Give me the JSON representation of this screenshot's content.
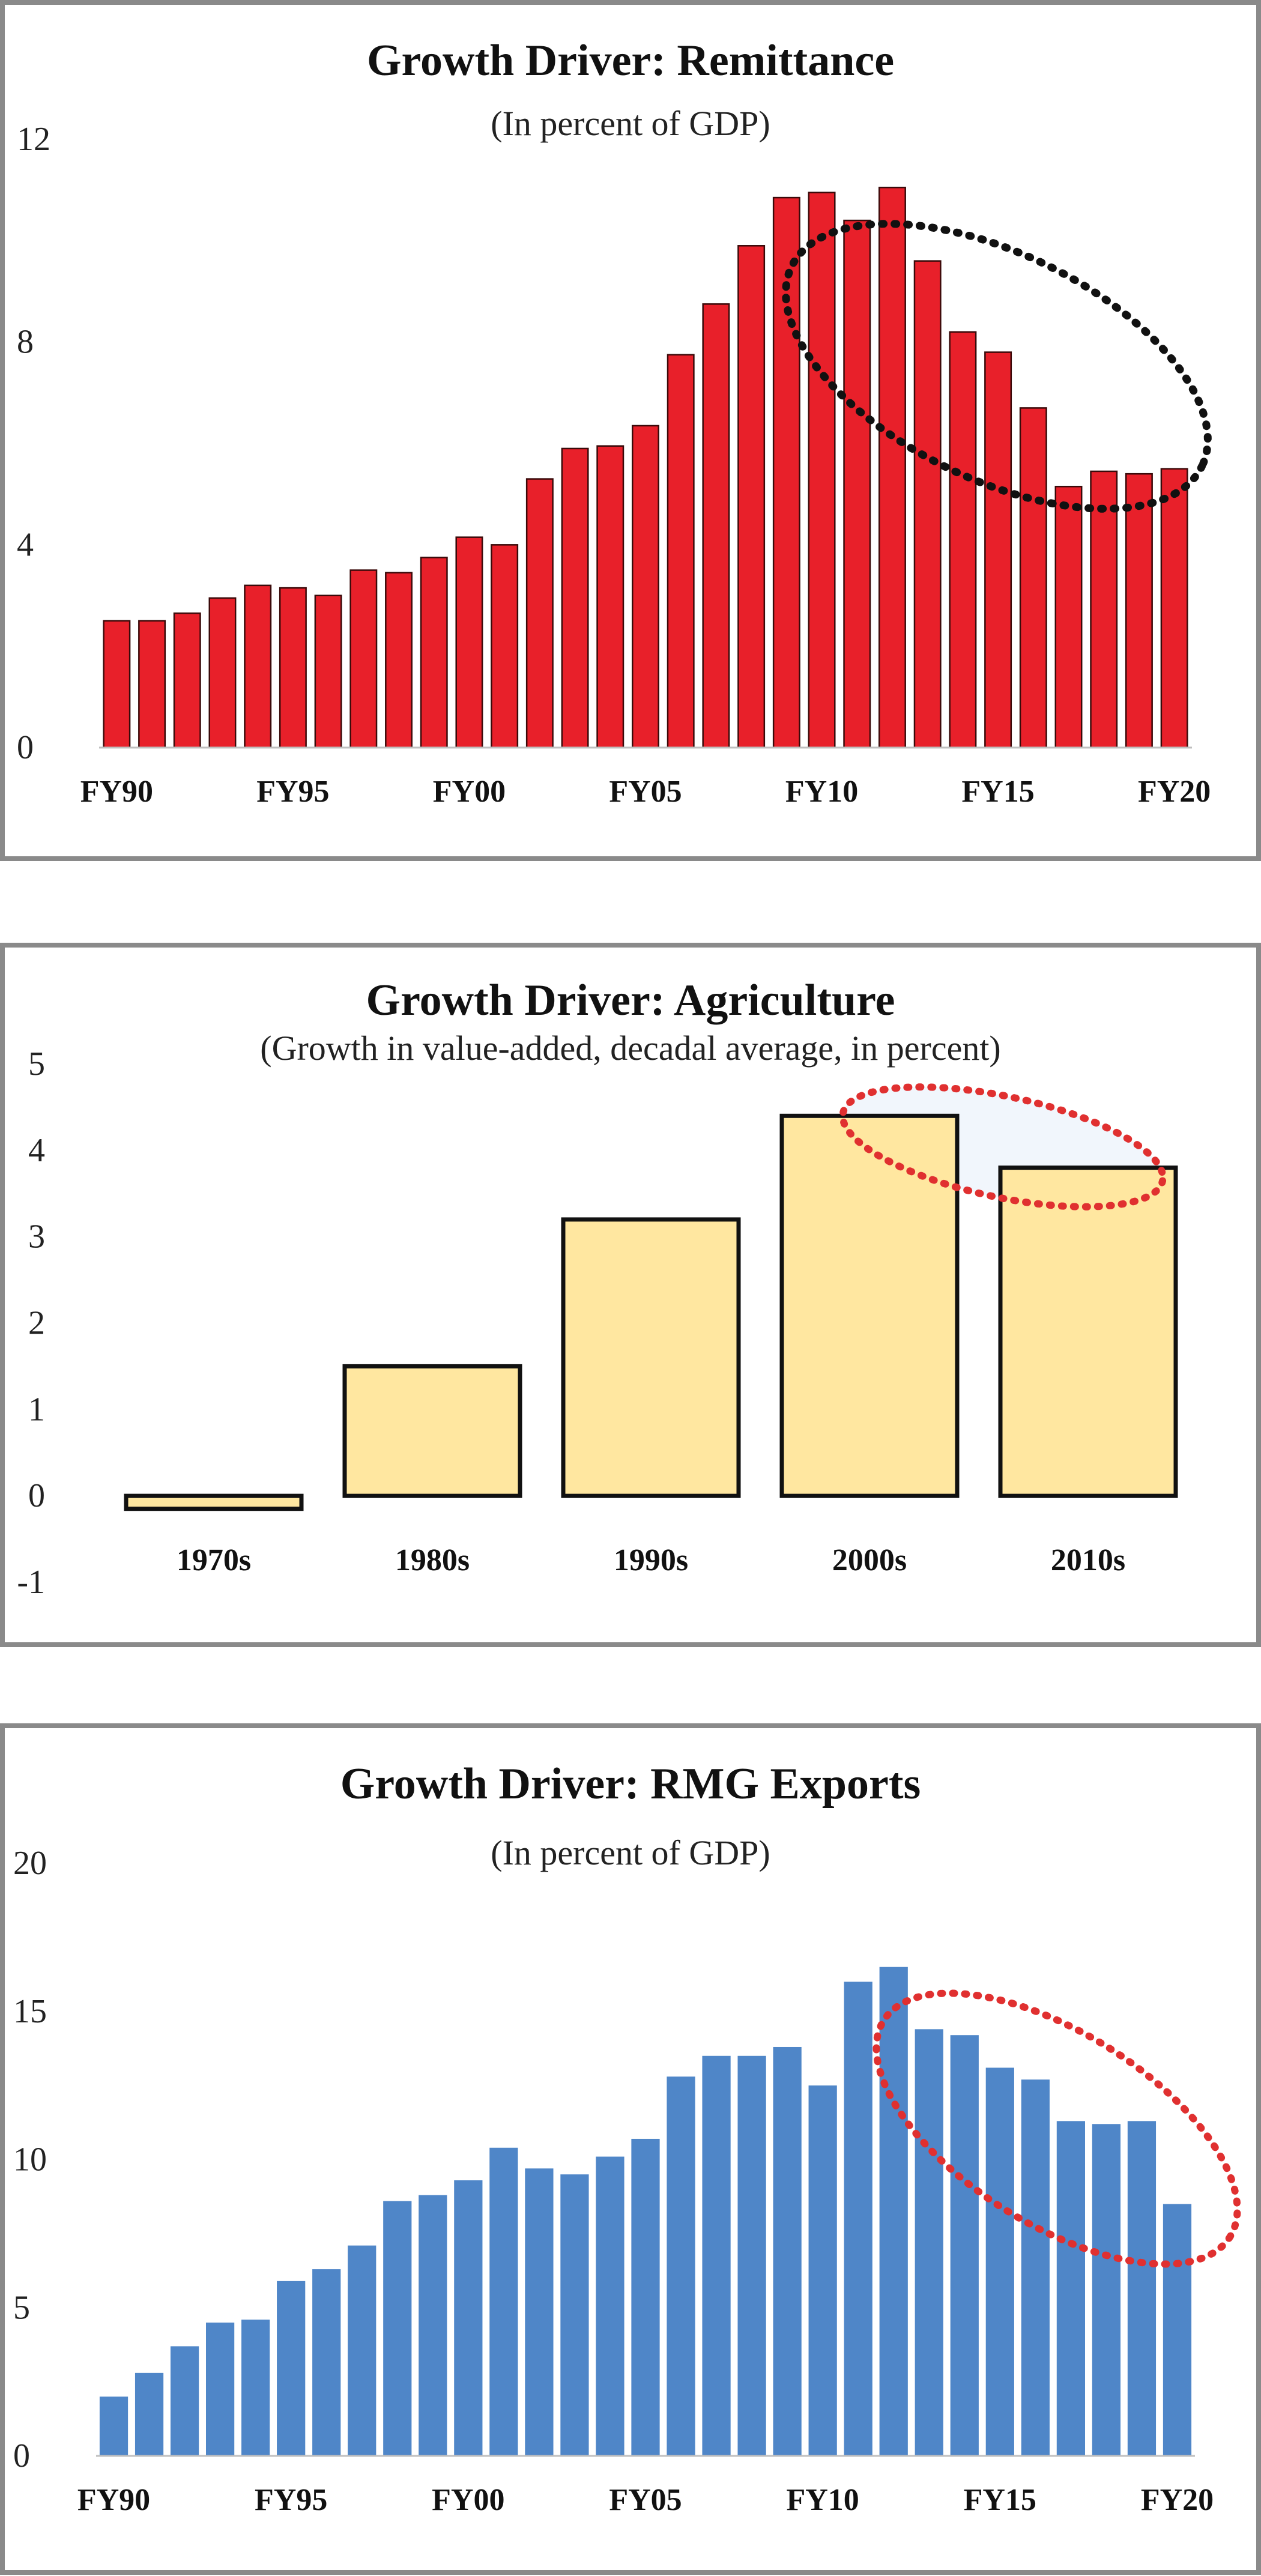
{
  "chart_data": [
    {
      "type": "bar",
      "title": "Growth Driver: Remittance",
      "subtitle": "(In percent of GDP)",
      "xlabel": "",
      "ylabel": "",
      "ylim": [
        0,
        12
      ],
      "yticks": [
        "0",
        "4",
        "8",
        "12"
      ],
      "xtick_labels": [
        "FY90",
        "FY95",
        "FY00",
        "FY05",
        "FY10",
        "FY15",
        "FY20"
      ],
      "categories": [
        "FY90",
        "FY91",
        "FY92",
        "FY93",
        "FY94",
        "FY95",
        "FY96",
        "FY97",
        "FY98",
        "FY99",
        "FY00",
        "FY01",
        "FY02",
        "FY03",
        "FY04",
        "FY05",
        "FY06",
        "FY07",
        "FY08",
        "FY09",
        "FY10",
        "FY11",
        "FY12",
        "FY13",
        "FY14",
        "FY15",
        "FY16",
        "FY17",
        "FY18",
        "FY19",
        "FY20"
      ],
      "values": [
        2.5,
        2.5,
        2.65,
        2.95,
        3.2,
        3.15,
        3.0,
        3.5,
        3.45,
        3.75,
        4.15,
        4.0,
        5.3,
        5.9,
        5.95,
        6.35,
        7.75,
        8.75,
        9.9,
        10.85,
        10.95,
        10.4,
        11.05,
        9.6,
        8.2,
        7.8,
        6.7,
        5.15,
        5.45,
        5.4,
        5.5
      ],
      "bar_color": "#e8202a",
      "annotation": "dotted ellipse highlighting decline after FY10",
      "annotation_color": "#111111"
    },
    {
      "type": "bar",
      "title": "Growth Driver: Agriculture",
      "subtitle": "(Growth in value-added, decadal average, in percent)",
      "xlabel": "",
      "ylabel": "",
      "ylim": [
        -1,
        5
      ],
      "yticks": [
        "-1",
        "0",
        "1",
        "2",
        "3",
        "4",
        "5"
      ],
      "categories": [
        "1970s",
        "1980s",
        "1990s",
        "2000s",
        "2010s"
      ],
      "values": [
        -0.15,
        1.5,
        3.2,
        4.4,
        3.8
      ],
      "bar_color": "#ffe7a0",
      "annotation": "dotted ellipse highlighting 2000s to 2010s decline",
      "annotation_color": "#e03030"
    },
    {
      "type": "bar",
      "title": "Growth Driver: RMG Exports",
      "subtitle": "(In percent of GDP)",
      "xlabel": "",
      "ylabel": "",
      "ylim": [
        0,
        20
      ],
      "yticks": [
        "0",
        "5",
        "10",
        "15",
        "20"
      ],
      "xtick_labels": [
        "FY90",
        "FY95",
        "FY00",
        "FY05",
        "FY10",
        "FY15",
        "FY20"
      ],
      "categories": [
        "FY90",
        "FY91",
        "FY92",
        "FY93",
        "FY94",
        "FY95",
        "FY96",
        "FY97",
        "FY98",
        "FY99",
        "FY00",
        "FY01",
        "FY02",
        "FY03",
        "FY04",
        "FY05",
        "FY06",
        "FY07",
        "FY08",
        "FY09",
        "FY10",
        "FY11",
        "FY12",
        "FY13",
        "FY14",
        "FY15",
        "FY16",
        "FY17",
        "FY18",
        "FY19",
        "FY20"
      ],
      "values": [
        2.0,
        2.8,
        3.7,
        4.5,
        4.6,
        5.9,
        6.3,
        7.1,
        8.6,
        8.8,
        9.3,
        10.4,
        9.7,
        9.5,
        10.1,
        10.7,
        12.8,
        13.5,
        13.5,
        13.8,
        12.5,
        16.0,
        16.5,
        14.4,
        14.2,
        13.1,
        12.7,
        11.3,
        11.2,
        11.3,
        8.5
      ],
      "bar_color": "#4f86c8",
      "annotation": "dotted ellipse highlighting decline after FY11",
      "annotation_color": "#e03030"
    }
  ]
}
